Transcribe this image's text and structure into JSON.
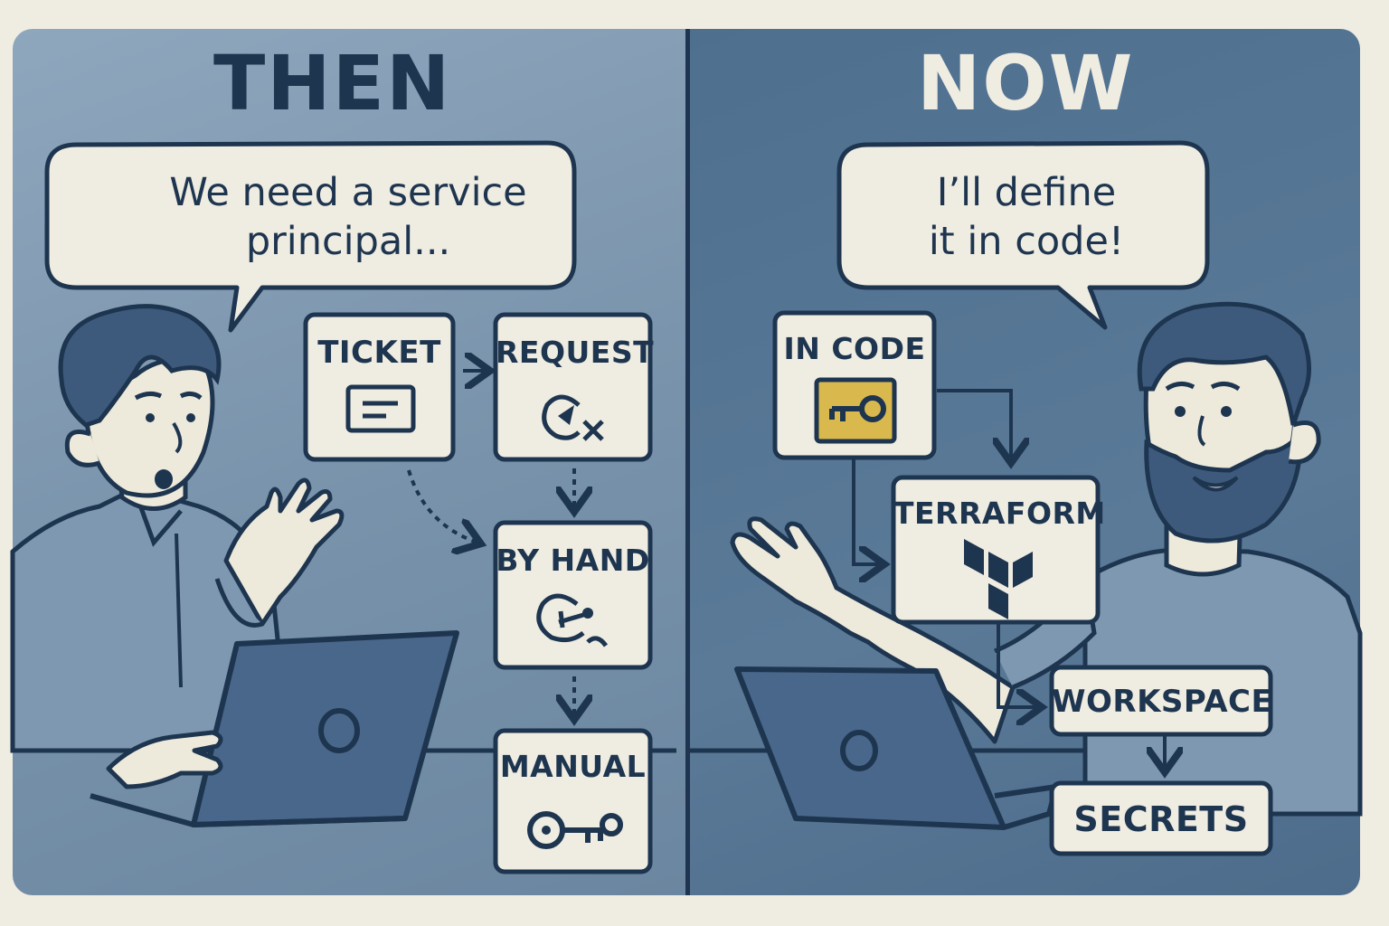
{
  "then": {
    "heading": "THEN",
    "speech": "We need a service\nprincipal...",
    "steps": [
      "TICKET",
      "REQUEST",
      "BY HAND",
      "MANUAL"
    ]
  },
  "now": {
    "heading": "NOW",
    "speech": "I’ll define\nit in code!",
    "steps": [
      "IN CODE",
      "TERRAFORM",
      "WORKSPACE",
      "SECRETS"
    ]
  },
  "colors": {
    "then_panel": "#8fa7bd",
    "now_panel": "#4f6f8f",
    "ink": "#1e3550",
    "paper": "#efece1",
    "key_accent": "#d9b94e"
  },
  "icons": [
    "document-icon",
    "chat-x-icon",
    "hand-tool-icon",
    "key-icon",
    "terraform-logo-icon"
  ]
}
